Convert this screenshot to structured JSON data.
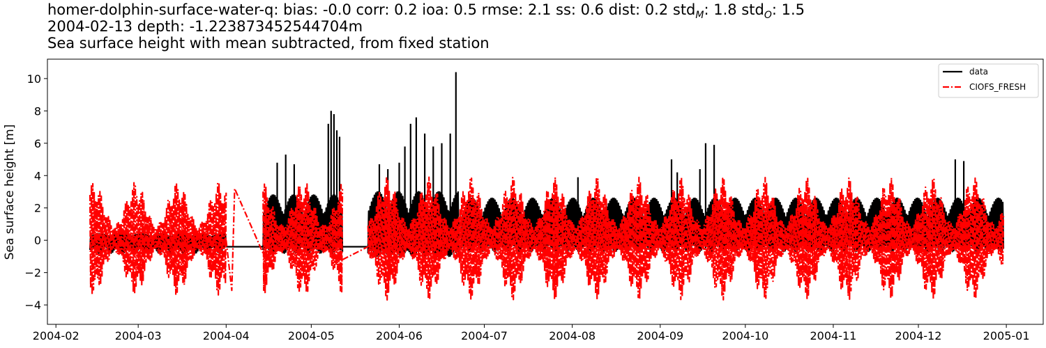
{
  "title": {
    "line1_prefix": "homer-dolphin-surface-water-q: bias: -0.0  corr: 0.2  ioa: 0.5  rmse: 2.1  ss: 0.6  dist: 0.2  std",
    "std_m_sub": "M",
    "line1_mid": ": 1.8  std",
    "std_o_sub": "O",
    "line1_suffix": ": 1.5",
    "line2": "2004-02-13 depth: -1.223873452544704m",
    "line3": "Sea surface height with mean subtracted, from fixed station"
  },
  "chart_data": {
    "type": "line",
    "ylabel": "Sea surface height [m]",
    "xlabel": "",
    "xlim": [
      "2004-01-29",
      "2005-01-14"
    ],
    "ylim": [
      -5.2,
      11.2
    ],
    "x_ticks": [
      "2004-02",
      "2004-03",
      "2004-04",
      "2004-05",
      "2004-06",
      "2004-07",
      "2004-08",
      "2004-09",
      "2004-10",
      "2004-11",
      "2004-12",
      "2005-01"
    ],
    "y_ticks": [
      -4,
      -2,
      0,
      2,
      4,
      6,
      8,
      10
    ],
    "y_tick_labels": [
      "−4",
      "−2",
      "0",
      "2",
      "4",
      "6",
      "8",
      "10"
    ],
    "legend_position": "top-right",
    "series": [
      {
        "name": "data",
        "color": "#000000",
        "style": "solid",
        "segments": [
          {
            "start": "2004-02-13",
            "end": "2004-04-01",
            "low": -0.6,
            "high": 0.4,
            "peak_points": []
          },
          {
            "start": "2004-04-14",
            "end": "2004-05-12",
            "low": -0.6,
            "high": 2.8,
            "peak_points": [
              [
                "2004-04-19",
                4.8
              ],
              [
                "2004-04-22",
                5.3
              ],
              [
                "2004-04-25",
                4.7
              ],
              [
                "2004-05-07",
                7.2
              ],
              [
                "2004-05-08",
                8.0
              ],
              [
                "2004-05-09",
                7.8
              ],
              [
                "2004-05-10",
                6.8
              ],
              [
                "2004-05-11",
                6.4
              ]
            ]
          },
          {
            "start": "2004-05-21",
            "end": "2004-06-22",
            "low": -0.8,
            "high": 3.0,
            "peak_points": [
              [
                "2004-05-25",
                4.7
              ],
              [
                "2004-05-28",
                4.4
              ],
              [
                "2004-06-01",
                4.8
              ],
              [
                "2004-06-03",
                5.8
              ],
              [
                "2004-06-05",
                7.2
              ],
              [
                "2004-06-07",
                7.6
              ],
              [
                "2004-06-10",
                6.6
              ],
              [
                "2004-06-13",
                5.8
              ],
              [
                "2004-06-16",
                6.0
              ],
              [
                "2004-06-19",
                6.6
              ],
              [
                "2004-06-21",
                10.4
              ]
            ]
          },
          {
            "start": "2004-06-23",
            "end": "2004-12-31",
            "low": -0.5,
            "high": 2.6,
            "peak_points": [
              [
                "2004-08-03",
                3.9
              ],
              [
                "2004-09-05",
                5.0
              ],
              [
                "2004-09-07",
                4.2
              ],
              [
                "2004-09-15",
                4.4
              ],
              [
                "2004-09-17",
                6.0
              ],
              [
                "2004-09-20",
                5.9
              ],
              [
                "2004-12-14",
                5.0
              ],
              [
                "2004-12-17",
                4.9
              ]
            ]
          }
        ]
      },
      {
        "name": "CIOFS_FRESH",
        "color": "#ff0000",
        "style": "dashdot",
        "segments": [
          {
            "start": "2004-02-13",
            "end": "2004-04-01",
            "amplitude": 3.5
          },
          {
            "start": "2004-04-14",
            "end": "2004-05-12",
            "amplitude": 3.6
          },
          {
            "start": "2004-05-21",
            "end": "2004-12-31",
            "amplitude": 3.8
          }
        ],
        "gap_points": [
          [
            "2004-04-03",
            -3.1
          ],
          [
            "2004-04-04",
            3.2
          ],
          [
            "2004-05-12",
            -1.2
          ],
          [
            "2004-05-21",
            -0.4
          ]
        ]
      }
    ]
  }
}
